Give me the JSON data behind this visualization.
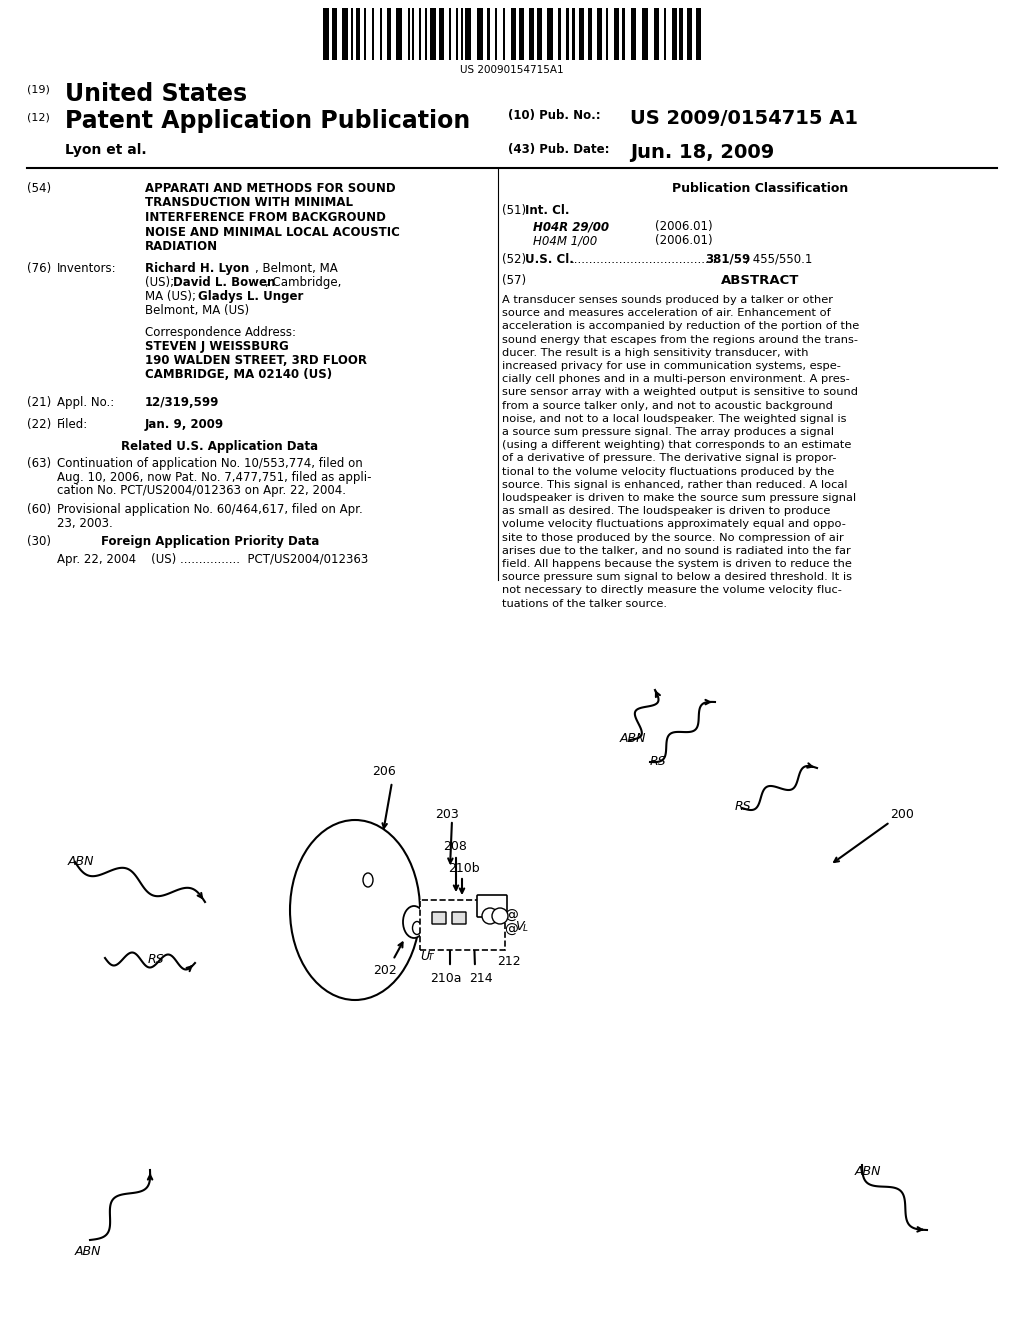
{
  "bg_color": "#ffffff",
  "barcode_text": "US 20090154715A1",
  "pub_no_full": "US 2009/0154715 A1",
  "pub_date": "Jun. 18, 2009",
  "author_line": "Lyon et al.",
  "title_text": "APPARATI AND METHODS FOR SOUND\nTRANSDUCTION WITH MINIMAL\nINTERFERENCE FROM BACKGROUND\nNOISE AND MINIMAL LOCAL ACOUSTIC\nRADIATION",
  "abstract_text": "A transducer senses sounds produced by a talker or other\nsource and measures acceleration of air. Enhancement of\nacceleration is accompanied by reduction of the portion of the\nsound energy that escapes from the regions around the trans-\nducer. The result is a high sensitivity transducer, with\nincreased privacy for use in communication systems, espe-\ncially cell phones and in a multi-person environment. A pres-\nsure sensor array with a weighted output is sensitive to sound\nfrom a source talker only, and not to acoustic background\nnoise, and not to a local loudspeaker. The weighted signal is\na source sum pressure signal. The array produces a signal\n(using a different weighting) that corresponds to an estimate\nof a derivative of pressure. The derivative signal is propor-\ntional to the volume velocity fluctuations produced by the\nsource. This signal is enhanced, rather than reduced. A local\nloudspeaker is driven to make the source sum pressure signal\nas small as desired. The loudspeaker is driven to produce\nvolume velocity fluctuations approximately equal and oppo-\nsite to those produced by the source. No compression of air\narises due to the talker, and no sound is radiated into the far\nfield. All happens because the system is driven to reduce the\nsource pressure sum signal to below a desired threshold. It is\nnot necessary to directly measure the volume velocity fluc-\ntuations of the talker source.",
  "related_63_text": "Continuation of application No. 10/553,774, filed on\nAug. 10, 2006, now Pat. No. 7,477,751, filed as appli-\ncation No. PCT/US2004/012363 on Apr. 22, 2004.",
  "related_60_text": "Provisional application No. 60/464,617, filed on Apr.\n23, 2003.",
  "foreign_text": "Apr. 22, 2004    (US) ................  PCT/US2004/012363"
}
